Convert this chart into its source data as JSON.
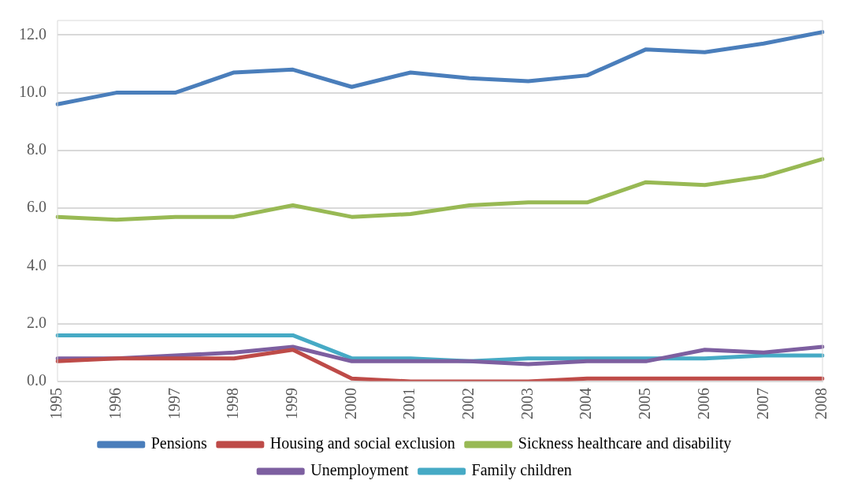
{
  "chart_data": {
    "type": "line",
    "categories": [
      "1995",
      "1996",
      "1997",
      "1998",
      "1999",
      "2000",
      "2001",
      "2002",
      "2003",
      "2004",
      "2005",
      "2006",
      "2007",
      "2008"
    ],
    "series": [
      {
        "name": "Pensions",
        "color": "#4a7ebb",
        "values": [
          9.6,
          10.0,
          10.0,
          10.7,
          10.8,
          10.2,
          10.7,
          10.5,
          10.4,
          10.6,
          11.5,
          11.4,
          11.7,
          12.1
        ]
      },
      {
        "name": "Housing and social exclusion",
        "color": "#be4b48",
        "values": [
          0.7,
          0.8,
          0.8,
          0.8,
          1.1,
          0.1,
          0.0,
          0.0,
          0.0,
          0.1,
          0.1,
          0.1,
          0.1,
          0.1
        ]
      },
      {
        "name": "Sickness healthcare and disability",
        "color": "#98b954",
        "values": [
          5.7,
          5.6,
          5.7,
          5.7,
          6.1,
          5.7,
          5.8,
          6.1,
          6.2,
          6.2,
          6.9,
          6.8,
          7.1,
          7.7
        ]
      },
      {
        "name": "Unemployment",
        "color": "#7d5fa0",
        "values": [
          0.8,
          0.8,
          0.9,
          1.0,
          1.2,
          0.7,
          0.7,
          0.7,
          0.6,
          0.7,
          0.7,
          1.1,
          1.0,
          1.2
        ]
      },
      {
        "name": "Family children",
        "color": "#46aac5",
        "values": [
          1.6,
          1.6,
          1.6,
          1.6,
          1.6,
          0.8,
          0.8,
          0.7,
          0.8,
          0.8,
          0.8,
          0.8,
          0.9,
          0.9
        ]
      }
    ],
    "ylim": [
      0,
      12.5
    ],
    "yticks": [
      {
        "value": 0,
        "label": "0.0"
      },
      {
        "value": 2,
        "label": "2.0"
      },
      {
        "value": 4,
        "label": "4.0"
      },
      {
        "value": 6,
        "label": "6.0"
      },
      {
        "value": 8,
        "label": "8.0"
      },
      {
        "value": 10,
        "label": "10.0"
      },
      {
        "value": 12,
        "label": "12.0"
      }
    ],
    "grid": "y",
    "legend": "bottom",
    "marker": "none",
    "line_style": "solid"
  }
}
